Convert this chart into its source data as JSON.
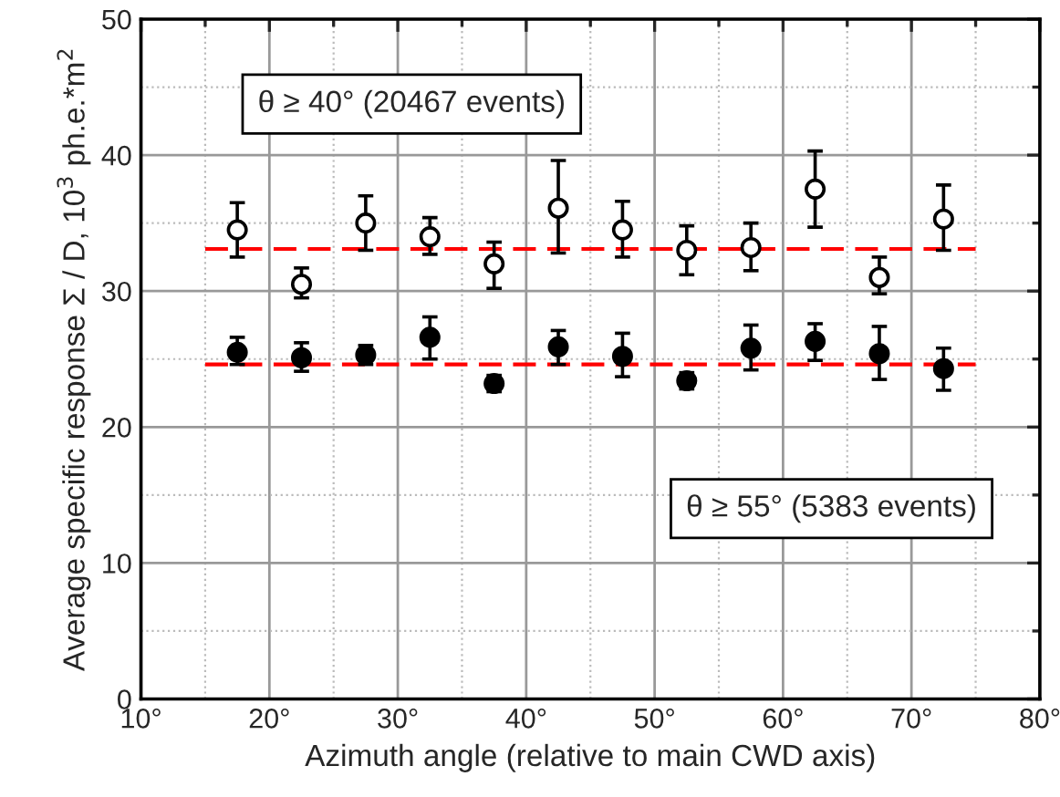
{
  "chart_data": {
    "type": "scatter",
    "xlabel": "Azimuth angle (relative to main CWD axis)",
    "ylabel": "Average specific response Σ / D, 10$^{3}$ ph.e.*m$^{2}$",
    "x": [
      17.5,
      22.5,
      27.5,
      32.5,
      37.5,
      42.5,
      47.5,
      52.5,
      57.5,
      62.5,
      67.5,
      72.5
    ],
    "series": [
      {
        "color": "#000000",
        "values": [
          34.5,
          30.5,
          35.0,
          34.0,
          32.0,
          36.1,
          34.5,
          33.0,
          33.2,
          37.5,
          31.0,
          35.3
        ],
        "errors": [
          [
            32.5,
            36.5
          ],
          [
            29.5,
            31.7
          ],
          [
            33.0,
            37.0
          ],
          [
            32.7,
            35.4
          ],
          [
            30.2,
            33.6
          ],
          [
            32.8,
            39.6
          ],
          [
            32.5,
            36.6
          ],
          [
            31.2,
            34.8
          ],
          [
            31.5,
            35.0
          ],
          [
            34.7,
            40.3
          ],
          [
            29.8,
            32.5
          ],
          [
            33.0,
            37.8
          ]
        ]
      },
      {
        "color": "#000000",
        "values": [
          25.5,
          25.1,
          25.3,
          26.6,
          23.2,
          25.9,
          25.2,
          23.4,
          25.8,
          26.3,
          25.4,
          24.3
        ],
        "errors": [
          [
            24.6,
            26.6
          ],
          [
            24.1,
            26.2
          ],
          [
            24.6,
            26.0
          ],
          [
            25.0,
            28.1
          ],
          [
            22.6,
            23.8
          ],
          [
            24.6,
            27.1
          ],
          [
            23.7,
            26.9
          ],
          [
            22.8,
            24.0
          ],
          [
            24.2,
            27.5
          ],
          [
            24.9,
            27.6
          ],
          [
            23.5,
            27.4
          ],
          [
            22.7,
            25.8
          ]
        ]
      }
    ],
    "ref_lines": [
      {
        "axis": "y",
        "value": 33.1,
        "color": "#ff0000",
        "line_style": "dashed"
      },
      {
        "axis": "y",
        "value": 24.6,
        "color": "#ff0000",
        "line_style": "dashed"
      }
    ],
    "annotations": [
      "θ ≥ 40° (20467 events)",
      "θ ≥ 55° (5383 events)"
    ],
    "marker": "circle",
    "xlim": [
      10,
      80
    ],
    "xticks": [
      {
        "value": 10,
        "label": "10°"
      },
      {
        "value": 20,
        "label": "20°"
      },
      {
        "value": 30,
        "label": "30°"
      },
      {
        "value": 40,
        "label": "40°"
      },
      {
        "value": 50,
        "label": "50°"
      },
      {
        "value": 60,
        "label": "60°"
      },
      {
        "value": 70,
        "label": "70°"
      },
      {
        "value": 80,
        "label": "80°"
      }
    ],
    "ylim": [
      0,
      50
    ],
    "yticks": [
      0,
      10,
      20,
      30,
      40,
      50
    ],
    "grid": true,
    "legend": false
  }
}
